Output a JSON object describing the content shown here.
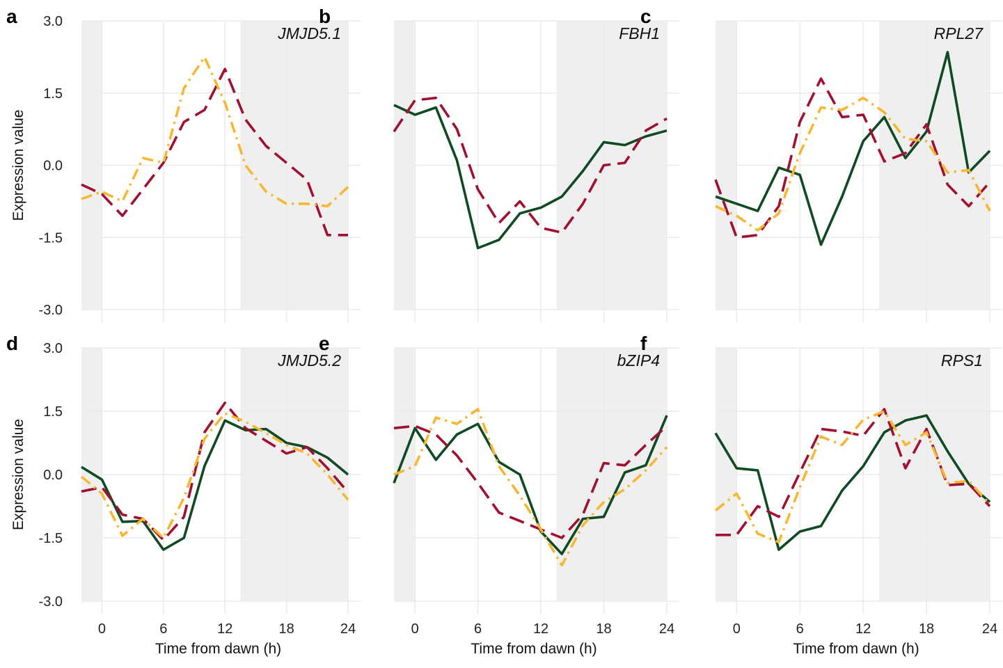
{
  "figure": {
    "xlabel": "Time from dawn (h)",
    "ylabel": "Expression value",
    "colors": {
      "green": "#0f4a22",
      "red": "#a01030",
      "yellow": "#f7b733",
      "night": "#efefef",
      "grid": "#ebebeb"
    }
  },
  "chart_data": [
    {
      "panel": "a",
      "gene": "JMJD5.1",
      "type": "line",
      "x": [
        -2,
        0,
        2,
        4,
        6,
        8,
        10,
        12,
        14,
        16,
        18,
        20,
        22,
        24
      ],
      "xlim": [
        -2,
        24
      ],
      "xticks": [
        "0",
        "6",
        "12",
        "18",
        "24"
      ],
      "ylim": [
        -3,
        3
      ],
      "yticks": [
        "3.0",
        "1.5",
        "0.0",
        "-1.5",
        "-3.0"
      ],
      "night_shading": [
        [
          -2,
          0
        ],
        [
          13.5,
          24
        ]
      ],
      "show_xtick_labels": false,
      "show_xlabel": false,
      "show_ylabel": true,
      "show_ytick_labels": true,
      "series": [
        {
          "style": "dashed",
          "color": "#a01030",
          "values": [
            -0.4,
            -0.6,
            -1.05,
            -0.5,
            0.05,
            0.9,
            1.15,
            2.0,
            0.95,
            0.4,
            0.05,
            -0.3,
            -1.45,
            -1.45
          ]
        },
        {
          "style": "dotdash",
          "color": "#f7b733",
          "values": [
            -0.7,
            -0.55,
            -0.75,
            0.15,
            0.05,
            1.6,
            2.25,
            1.3,
            0.0,
            -0.55,
            -0.8,
            -0.8,
            -0.85,
            -0.45
          ]
        }
      ]
    },
    {
      "panel": "b",
      "gene": "FBH1",
      "type": "line",
      "x": [
        -2,
        0,
        2,
        4,
        6,
        8,
        10,
        12,
        14,
        16,
        18,
        20,
        22,
        24
      ],
      "xlim": [
        -2,
        24
      ],
      "xticks": [
        "0",
        "6",
        "12",
        "18",
        "24"
      ],
      "ylim": [
        -3,
        3
      ],
      "yticks": [
        "3.0",
        "1.5",
        "0.0",
        "-1.5",
        "-3.0"
      ],
      "night_shading": [
        [
          -2,
          0
        ],
        [
          13.5,
          24
        ]
      ],
      "show_xtick_labels": false,
      "show_xlabel": false,
      "show_ylabel": false,
      "show_ytick_labels": false,
      "series": [
        {
          "style": "solid",
          "color": "#0f4a22",
          "values": [
            1.25,
            1.05,
            1.2,
            0.1,
            -1.72,
            -1.55,
            -1.0,
            -0.88,
            -0.65,
            -0.12,
            0.48,
            0.42,
            0.6,
            0.72
          ]
        },
        {
          "style": "dashed",
          "color": "#a01030",
          "values": [
            0.7,
            1.35,
            1.4,
            0.75,
            -0.5,
            -1.2,
            -0.75,
            -1.3,
            -1.4,
            -0.8,
            0.0,
            0.05,
            0.72,
            0.97
          ]
        }
      ]
    },
    {
      "panel": "c",
      "gene": "RPL27",
      "type": "line",
      "x": [
        -2,
        0,
        2,
        4,
        6,
        8,
        10,
        12,
        14,
        16,
        18,
        20,
        22,
        24
      ],
      "xlim": [
        -2,
        24
      ],
      "xticks": [
        "0",
        "6",
        "12",
        "18",
        "24"
      ],
      "ylim": [
        -3,
        3
      ],
      "yticks": [
        "3.0",
        "1.5",
        "0.0",
        "-1.5",
        "-3.0"
      ],
      "night_shading": [
        [
          -2,
          0
        ],
        [
          13.5,
          24
        ]
      ],
      "show_xtick_labels": false,
      "show_xlabel": false,
      "show_ylabel": false,
      "show_ytick_labels": false,
      "series": [
        {
          "style": "solid",
          "color": "#0f4a22",
          "values": [
            -0.65,
            -0.8,
            -0.95,
            -0.05,
            -0.2,
            -1.65,
            -0.65,
            0.5,
            1.0,
            0.15,
            0.7,
            2.35,
            -0.15,
            0.3
          ]
        },
        {
          "style": "dashed",
          "color": "#a01030",
          "values": [
            -0.3,
            -1.5,
            -1.45,
            -0.85,
            0.9,
            1.8,
            1.0,
            1.05,
            0.08,
            0.25,
            0.85,
            -0.4,
            -0.85,
            -0.35
          ]
        },
        {
          "style": "dotdash",
          "color": "#f7b733",
          "values": [
            -0.85,
            -1.05,
            -1.35,
            -1.0,
            0.25,
            1.2,
            1.15,
            1.4,
            1.1,
            0.55,
            0.5,
            -0.15,
            -0.1,
            -0.95
          ]
        }
      ]
    },
    {
      "panel": "d",
      "gene": "JMJD5.2",
      "type": "line",
      "x": [
        -2,
        0,
        2,
        4,
        6,
        8,
        10,
        12,
        14,
        16,
        18,
        20,
        22,
        24
      ],
      "xlim": [
        -2,
        24
      ],
      "xticks": [
        "0",
        "6",
        "12",
        "18",
        "24"
      ],
      "ylim": [
        -3,
        3
      ],
      "yticks": [
        "3.0",
        "1.5",
        "0.0",
        "-1.5",
        "-3.0"
      ],
      "night_shading": [
        [
          -2,
          0
        ],
        [
          13.5,
          24
        ]
      ],
      "show_xtick_labels": true,
      "show_xlabel": true,
      "show_ylabel": true,
      "show_ytick_labels": true,
      "series": [
        {
          "style": "solid",
          "color": "#0f4a22",
          "values": [
            0.18,
            -0.12,
            -1.12,
            -1.1,
            -1.78,
            -1.5,
            0.2,
            1.28,
            1.05,
            1.08,
            0.75,
            0.65,
            0.4,
            0.0
          ]
        },
        {
          "style": "dashed",
          "color": "#a01030",
          "values": [
            -0.4,
            -0.3,
            -0.95,
            -1.05,
            -1.55,
            -1.0,
            1.0,
            1.7,
            1.1,
            0.8,
            0.5,
            0.65,
            0.15,
            -0.42
          ]
        },
        {
          "style": "dotdash",
          "color": "#f7b733",
          "values": [
            -0.05,
            -0.45,
            -1.45,
            -1.05,
            -1.5,
            -0.55,
            0.85,
            1.45,
            1.25,
            0.98,
            0.7,
            0.5,
            0.0,
            -0.6
          ]
        }
      ]
    },
    {
      "panel": "e",
      "gene": "bZIP4",
      "type": "line",
      "x": [
        -2,
        0,
        2,
        4,
        6,
        8,
        10,
        12,
        14,
        16,
        18,
        20,
        22,
        24
      ],
      "xlim": [
        -2,
        24
      ],
      "xticks": [
        "0",
        "6",
        "12",
        "18",
        "24"
      ],
      "ylim": [
        -3,
        3
      ],
      "yticks": [
        "3.0",
        "1.5",
        "0.0",
        "-1.5",
        "-3.0"
      ],
      "night_shading": [
        [
          -2,
          0
        ],
        [
          13.5,
          24
        ]
      ],
      "show_xtick_labels": true,
      "show_xlabel": true,
      "show_ylabel": false,
      "show_ytick_labels": false,
      "series": [
        {
          "style": "solid",
          "color": "#0f4a22",
          "values": [
            -0.2,
            1.1,
            0.35,
            0.95,
            1.2,
            0.3,
            0.0,
            -1.35,
            -1.88,
            -1.05,
            -1.0,
            0.05,
            0.22,
            1.4
          ]
        },
        {
          "style": "dashed",
          "color": "#a01030",
          "values": [
            1.1,
            1.15,
            0.95,
            0.45,
            -0.2,
            -0.9,
            -1.1,
            -1.3,
            -1.5,
            -0.95,
            0.27,
            0.22,
            0.7,
            1.15
          ]
        },
        {
          "style": "dotdash",
          "color": "#f7b733",
          "values": [
            0.0,
            0.2,
            1.35,
            1.2,
            1.55,
            0.2,
            -0.5,
            -1.3,
            -2.15,
            -1.2,
            -0.65,
            -0.35,
            0.1,
            0.65
          ]
        }
      ]
    },
    {
      "panel": "f",
      "gene": "RPS1",
      "type": "line",
      "x": [
        -2,
        0,
        2,
        4,
        6,
        8,
        10,
        12,
        14,
        16,
        18,
        20,
        22,
        24
      ],
      "xlim": [
        -2,
        24
      ],
      "xticks": [
        "0",
        "6",
        "12",
        "18",
        "24"
      ],
      "ylim": [
        -3,
        3
      ],
      "yticks": [
        "3.0",
        "1.5",
        "0.0",
        "-1.5",
        "-3.0"
      ],
      "night_shading": [
        [
          -2,
          0
        ],
        [
          13.5,
          24
        ]
      ],
      "show_xtick_labels": true,
      "show_xlabel": true,
      "show_ylabel": false,
      "show_ytick_labels": false,
      "series": [
        {
          "style": "solid",
          "color": "#0f4a22",
          "values": [
            0.98,
            0.15,
            0.1,
            -1.78,
            -1.35,
            -1.22,
            -0.38,
            0.2,
            1.0,
            1.28,
            1.4,
            0.55,
            -0.22,
            -0.65
          ]
        },
        {
          "style": "dashed",
          "color": "#a01030",
          "values": [
            -1.43,
            -1.43,
            -0.75,
            -1.0,
            0.05,
            1.08,
            1.02,
            0.92,
            1.55,
            0.15,
            1.08,
            -0.25,
            -0.22,
            -0.75
          ]
        },
        {
          "style": "dotdash",
          "color": "#f7b733",
          "values": [
            -0.85,
            -0.45,
            -1.4,
            -1.6,
            -0.3,
            0.9,
            0.7,
            1.3,
            1.5,
            0.7,
            1.0,
            -0.2,
            -0.15,
            -0.7
          ]
        }
      ]
    }
  ]
}
